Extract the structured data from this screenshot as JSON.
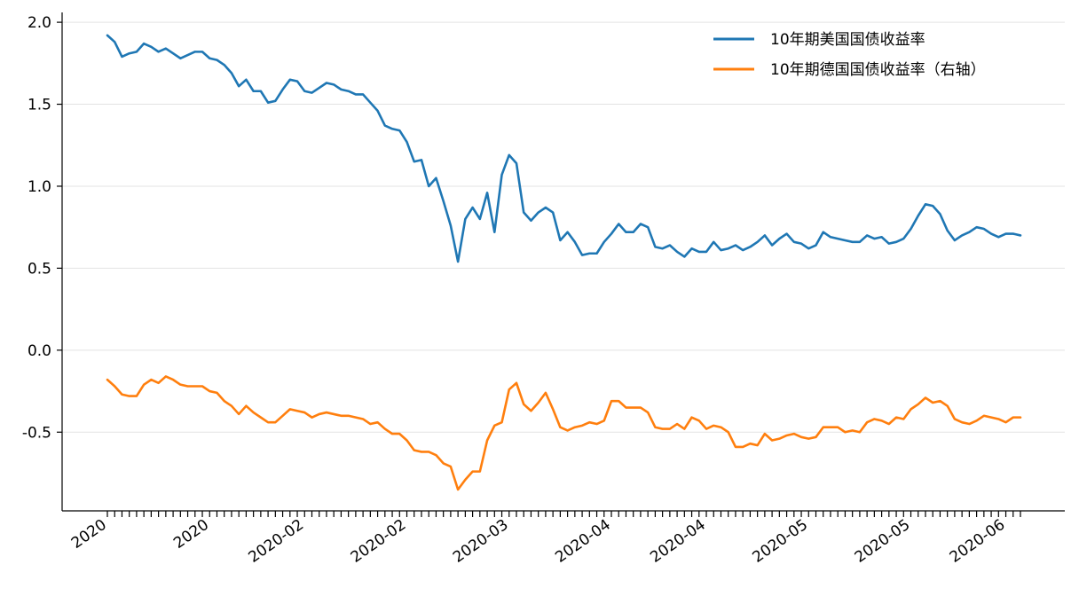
{
  "chart_data": {
    "type": "line",
    "title": "",
    "xlabel": "",
    "ylabel": "",
    "ylim": [
      -0.98,
      2.06
    ],
    "yticks": [
      2.0,
      1.5,
      1.0,
      0.5,
      0.0,
      -0.5
    ],
    "ytick_labels": [
      "2.0",
      "1.5",
      "1.0",
      "0.5",
      "0.0",
      "-0.5"
    ],
    "xtick_labels": [
      "2020",
      "2020",
      "2020-02",
      "2020-02",
      "2020-03",
      "2020-04",
      "2020-04",
      "2020-05",
      "2020-05",
      "2020-06"
    ],
    "grid": "horizontal",
    "legend_position": "top-right",
    "series": [
      {
        "name": "10年期美国国债收益率",
        "color": "#1f77b4",
        "values": [
          1.92,
          1.88,
          1.79,
          1.81,
          1.82,
          1.87,
          1.85,
          1.82,
          1.84,
          1.81,
          1.78,
          1.8,
          1.82,
          1.82,
          1.78,
          1.77,
          1.74,
          1.69,
          1.61,
          1.65,
          1.58,
          1.58,
          1.51,
          1.52,
          1.59,
          1.65,
          1.64,
          1.58,
          1.57,
          1.6,
          1.63,
          1.62,
          1.59,
          1.58,
          1.56,
          1.56,
          1.51,
          1.46,
          1.37,
          1.35,
          1.34,
          1.27,
          1.15,
          1.16,
          1.0,
          1.05,
          0.91,
          0.76,
          0.54,
          0.8,
          0.87,
          0.8,
          0.96,
          0.72,
          1.07,
          1.19,
          1.14,
          0.84,
          0.79,
          0.84,
          0.87,
          0.84,
          0.67,
          0.72,
          0.66,
          0.58,
          0.59,
          0.59,
          0.66,
          0.71,
          0.77,
          0.72,
          0.72,
          0.77,
          0.75,
          0.63,
          0.62,
          0.64,
          0.6,
          0.57,
          0.62,
          0.6,
          0.6,
          0.66,
          0.61,
          0.62,
          0.64,
          0.61,
          0.63,
          0.66,
          0.7,
          0.64,
          0.68,
          0.71,
          0.66,
          0.65,
          0.62,
          0.64,
          0.72,
          0.69,
          0.68,
          0.67,
          0.66,
          0.66,
          0.7,
          0.68,
          0.69,
          0.65,
          0.66,
          0.68,
          0.74,
          0.82,
          0.89,
          0.88,
          0.83,
          0.73,
          0.67,
          0.7,
          0.72,
          0.75,
          0.74,
          0.71,
          0.69,
          0.71,
          0.71,
          0.7
        ]
      },
      {
        "name": "10年期德国国债收益率（右轴）",
        "color": "#ff7f0e",
        "values": [
          -0.18,
          -0.22,
          -0.27,
          -0.28,
          -0.28,
          -0.21,
          -0.18,
          -0.2,
          -0.16,
          -0.18,
          -0.21,
          -0.22,
          -0.22,
          -0.22,
          -0.25,
          -0.26,
          -0.31,
          -0.34,
          -0.39,
          -0.34,
          -0.38,
          -0.41,
          -0.44,
          -0.44,
          -0.4,
          -0.36,
          -0.37,
          -0.38,
          -0.41,
          -0.39,
          -0.38,
          -0.39,
          -0.4,
          -0.4,
          -0.41,
          -0.42,
          -0.45,
          -0.44,
          -0.48,
          -0.51,
          -0.51,
          -0.55,
          -0.61,
          -0.62,
          -0.62,
          -0.64,
          -0.69,
          -0.71,
          -0.85,
          -0.79,
          -0.74,
          -0.74,
          -0.55,
          -0.46,
          -0.44,
          -0.24,
          -0.2,
          -0.33,
          -0.37,
          -0.32,
          -0.26,
          -0.36,
          -0.47,
          -0.49,
          -0.47,
          -0.46,
          -0.44,
          -0.45,
          -0.43,
          -0.31,
          -0.31,
          -0.35,
          -0.35,
          -0.35,
          -0.38,
          -0.47,
          -0.48,
          -0.48,
          -0.45,
          -0.48,
          -0.41,
          -0.43,
          -0.48,
          -0.46,
          -0.47,
          -0.5,
          -0.59,
          -0.59,
          -0.57,
          -0.58,
          -0.51,
          -0.55,
          -0.54,
          -0.52,
          -0.51,
          -0.53,
          -0.54,
          -0.53,
          -0.47,
          -0.47,
          -0.47,
          -0.5,
          -0.49,
          -0.5,
          -0.44,
          -0.42,
          -0.43,
          -0.45,
          -0.41,
          -0.42,
          -0.36,
          -0.33,
          -0.29,
          -0.32,
          -0.31,
          -0.34,
          -0.42,
          -0.44,
          -0.45,
          -0.43,
          -0.4,
          -0.41,
          -0.42,
          -0.44,
          -0.41,
          -0.41
        ]
      }
    ]
  }
}
